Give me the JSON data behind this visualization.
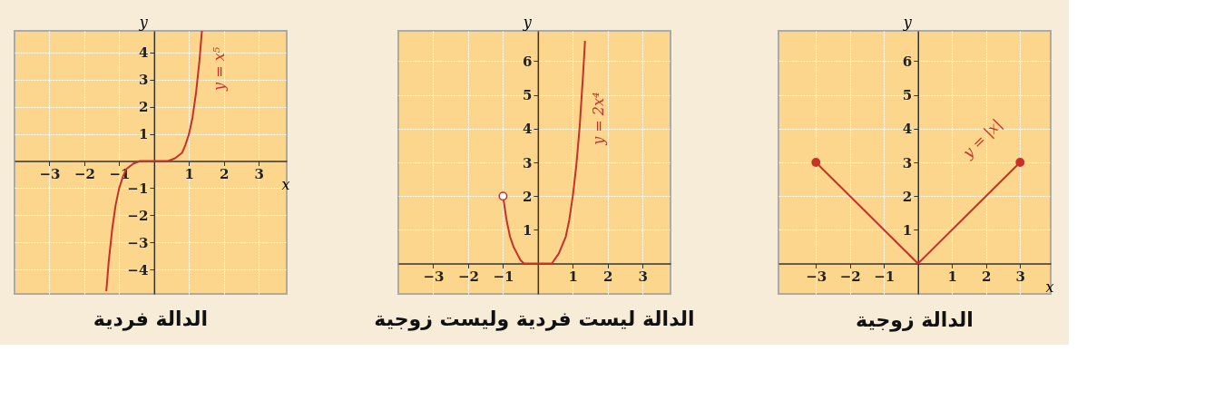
{
  "chart_data": [
    {
      "type": "line",
      "title": "الدالة فردية",
      "xlabel": "x",
      "ylabel": "y",
      "xlim": [
        -4,
        3.8
      ],
      "ylim": [
        -4.9,
        4.8
      ],
      "xticks": [
        -3,
        -2,
        -1,
        1,
        2,
        3
      ],
      "yticks": [
        -4,
        -3,
        -2,
        -1,
        1,
        2,
        3,
        4
      ],
      "grid": true,
      "series": [
        {
          "name": "y = x⁵",
          "color": "#c8302a",
          "x": [
            -1.37,
            -1.3,
            -1.2,
            -1.1,
            -1,
            -0.9,
            -0.8,
            -0.6,
            -0.4,
            -0.2,
            0,
            0.2,
            0.4,
            0.6,
            0.8,
            0.9,
            1,
            1.1,
            1.2,
            1.3,
            1.37
          ],
          "values": [
            -4.8,
            -3.7,
            -2.5,
            -1.6,
            -1,
            -0.6,
            -0.3,
            -0.1,
            0,
            0,
            0,
            0,
            0,
            0.1,
            0.3,
            0.6,
            1,
            1.6,
            2.5,
            3.7,
            4.8
          ]
        }
      ]
    },
    {
      "type": "line",
      "title": "الدالة ليست فردية وليست زوجية",
      "xlabel": null,
      "ylabel": "y",
      "xlim": [
        -4,
        3.8
      ],
      "ylim": [
        -0.9,
        6.9
      ],
      "xticks": [
        -3,
        -2,
        -1,
        1,
        2,
        3
      ],
      "yticks": [
        1,
        2,
        3,
        4,
        5,
        6
      ],
      "grid": true,
      "series": [
        {
          "name": "y = 2x⁴",
          "color": "#c8302a",
          "x": [
            -1,
            -0.9,
            -0.8,
            -0.7,
            -0.6,
            -0.5,
            -0.4,
            -0.2,
            0,
            0.2,
            0.4,
            0.6,
            0.8,
            0.9,
            1,
            1.1,
            1.2,
            1.3,
            1.35
          ],
          "values": [
            2,
            1.3,
            0.8,
            0.5,
            0.3,
            0.1,
            0,
            0,
            0,
            0,
            0,
            0.3,
            0.8,
            1.3,
            2,
            2.9,
            4.1,
            5.7,
            6.6
          ]
        },
        {
          "type": "scatter",
          "color": "#ffffff",
          "x": [
            -1
          ],
          "values": [
            2
          ]
        }
      ]
    },
    {
      "type": "line",
      "title": "الدالة زوجية",
      "xlabel": "x",
      "ylabel": "y",
      "xlim": [
        -4.1,
        3.9
      ],
      "ylim": [
        -0.9,
        6.9
      ],
      "xticks": [
        -3,
        -2,
        -1,
        1,
        2,
        3
      ],
      "yticks": [
        1,
        2,
        3,
        4,
        5,
        6
      ],
      "grid": true,
      "series": [
        {
          "name": "y = |x|",
          "color": "#c8302a",
          "x": [
            -3,
            0,
            3
          ],
          "values": [
            3,
            0,
            3
          ]
        },
        {
          "type": "scatter",
          "color": "#c8302a",
          "x": [
            -3,
            3
          ],
          "values": [
            3,
            3
          ]
        }
      ]
    }
  ]
}
